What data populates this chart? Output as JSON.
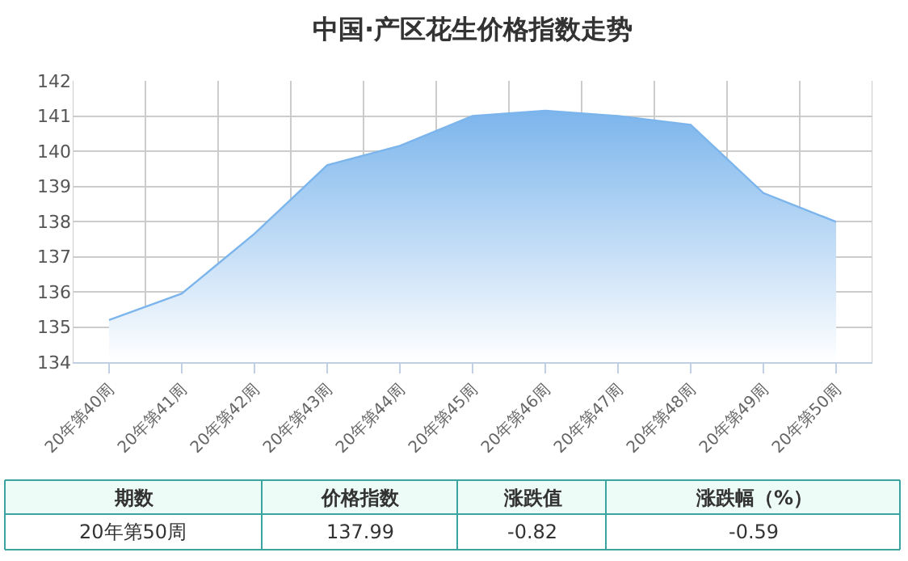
{
  "chart_data": {
    "type": "area",
    "title": "中国·产区花生价格指数走势",
    "categories": [
      "20年第40周",
      "20年第41周",
      "20年第42周",
      "20年第43周",
      "20年第44周",
      "20年第45周",
      "20年第46周",
      "20年第47周",
      "20年第48周",
      "20年第49周",
      "20年第50周"
    ],
    "series": [
      {
        "color": "#7cb5ec",
        "values": [
          135.2,
          135.95,
          137.65,
          139.6,
          140.15,
          141.0,
          141.15,
          141.0,
          140.75,
          138.81,
          137.99
        ]
      }
    ],
    "ylim": [
      134,
      142
    ],
    "yticks": [
      134,
      135,
      136,
      137,
      138,
      139,
      140,
      141,
      142
    ],
    "grid": true,
    "annotations": [
      "期数",
      "价格指数",
      "涨跌值",
      "涨跌幅（%）",
      "20年第50周",
      "137.99",
      "-0.82",
      "-0.59"
    ]
  }
}
